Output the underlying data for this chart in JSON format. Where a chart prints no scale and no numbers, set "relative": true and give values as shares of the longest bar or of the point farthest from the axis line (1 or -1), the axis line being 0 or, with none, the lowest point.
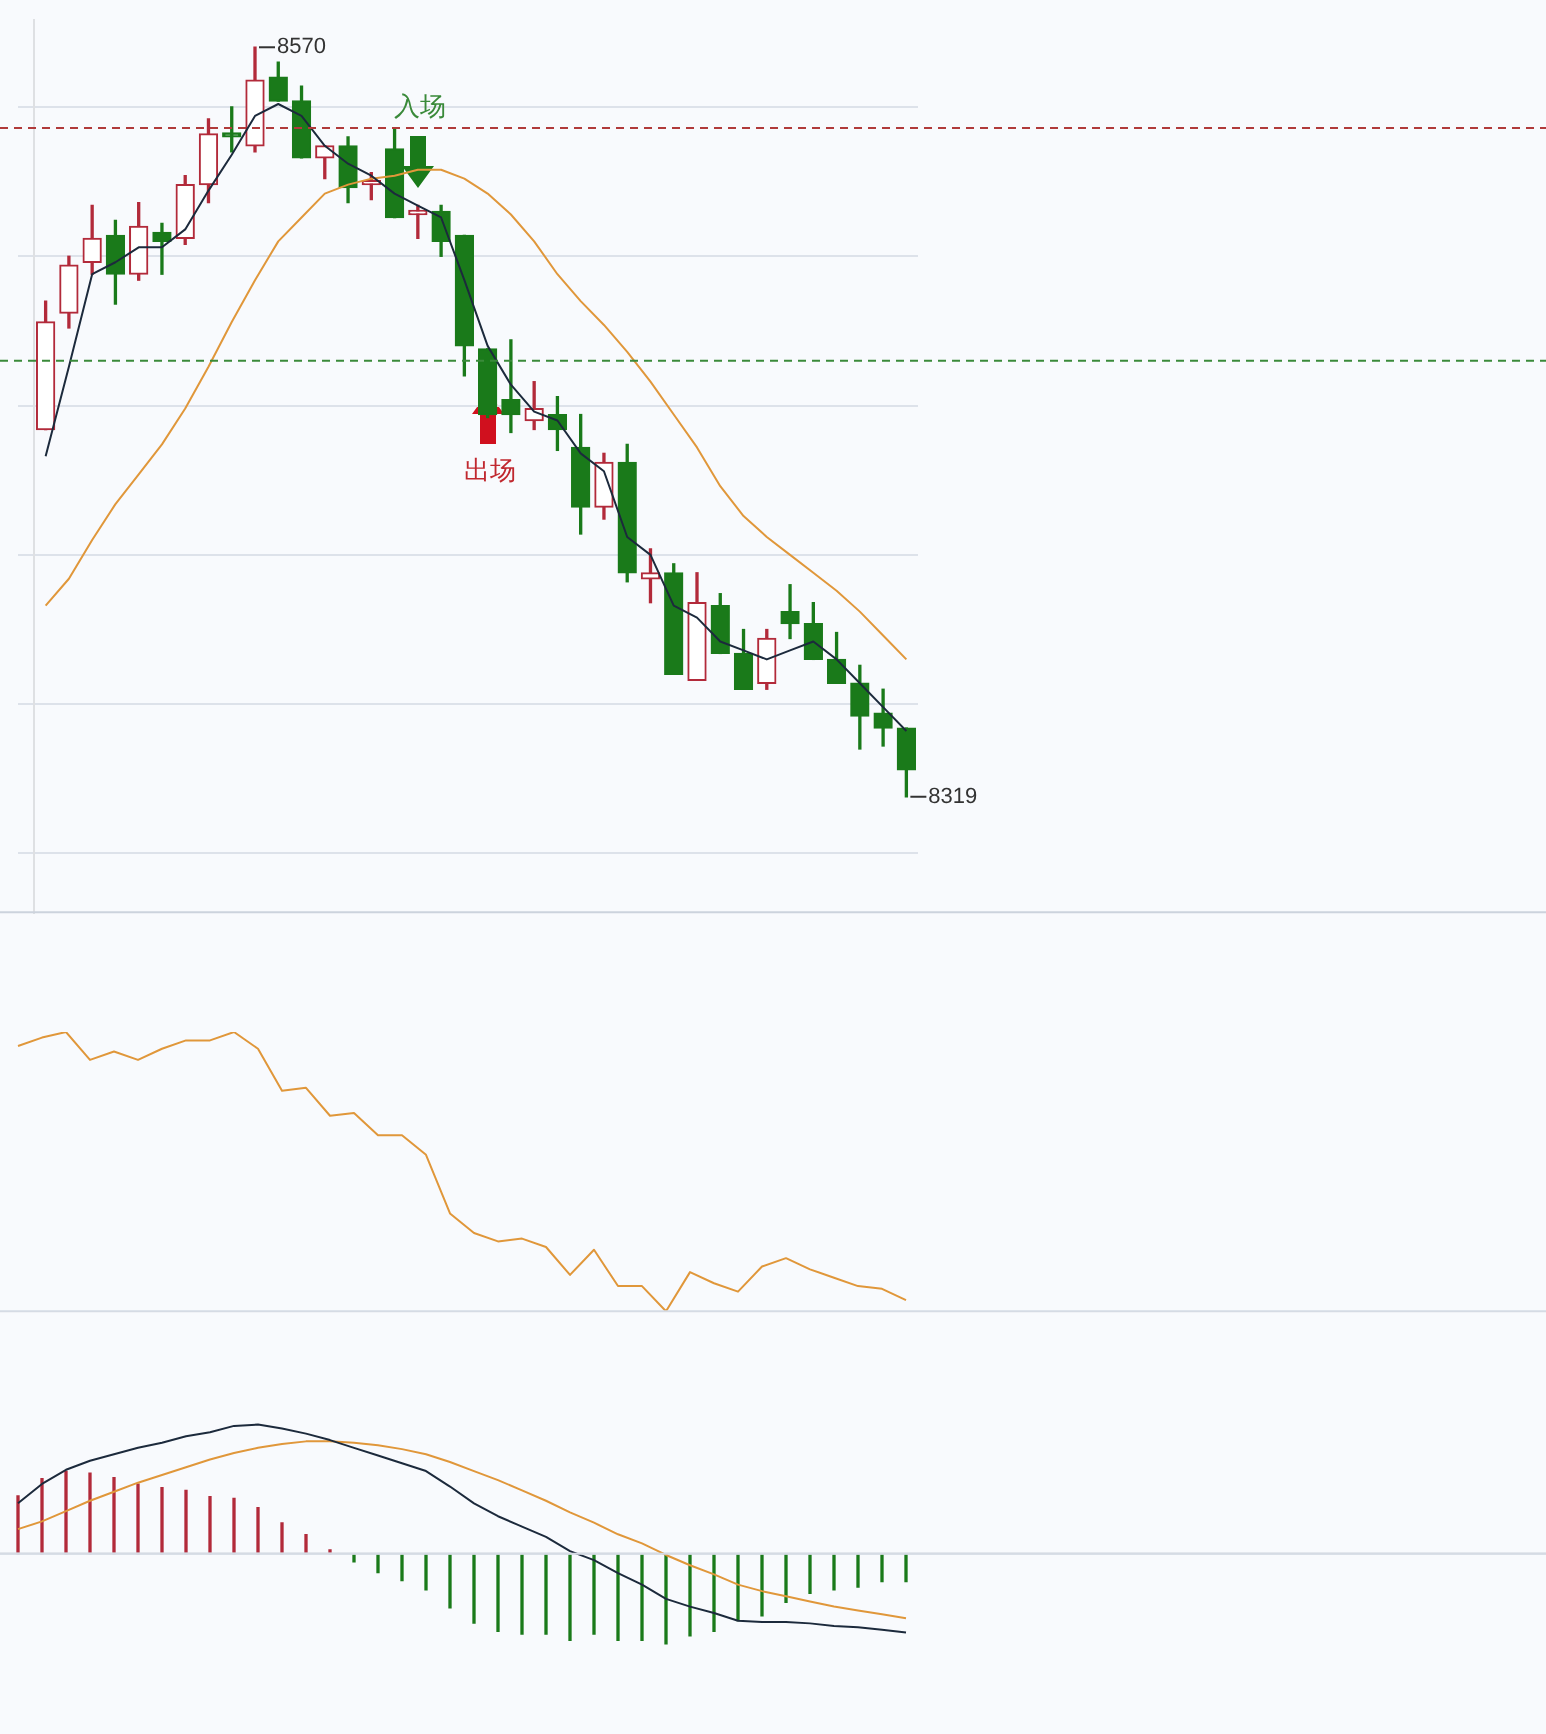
{
  "chart_data": [
    {
      "type": "candlestick",
      "categories": [
        null,
        null,
        null,
        null,
        null,
        null,
        null,
        null,
        null,
        null,
        null,
        null,
        null,
        null,
        null,
        null,
        null,
        null,
        null,
        null,
        null,
        null,
        null,
        null,
        null,
        null,
        null,
        null,
        null,
        null,
        null,
        null,
        null,
        null,
        null,
        null,
        null,
        null
      ],
      "ohlc": [
        [
          8442,
          8485,
          8442,
          8478
        ],
        [
          8481,
          8500,
          8476,
          8497
        ],
        [
          8498,
          8517,
          8494,
          8506
        ],
        [
          8507,
          8512,
          8484,
          8494
        ],
        [
          8494,
          8518,
          8492,
          8510
        ],
        [
          8508,
          8511,
          8494,
          8505
        ],
        [
          8506,
          8527,
          8504,
          8524
        ],
        [
          8524,
          8546,
          8518,
          8541
        ],
        [
          8541,
          8550,
          8535,
          8540
        ],
        [
          8537,
          8570,
          8535,
          8559
        ],
        [
          8560,
          8565,
          8552,
          8552
        ],
        [
          8552,
          8557,
          8533,
          8533
        ],
        [
          8533,
          8537,
          8526,
          8537
        ],
        [
          8537,
          8540,
          8518,
          8523
        ],
        [
          8524,
          8528,
          8519,
          8525
        ],
        [
          8536,
          8543,
          8513,
          8513
        ],
        [
          8514,
          8517,
          8506,
          8515
        ],
        [
          8515,
          8517,
          8500,
          8505
        ],
        [
          8507,
          8507,
          8460,
          8470
        ],
        [
          8469,
          8469,
          8446,
          8447
        ],
        [
          8452,
          8472,
          8441,
          8447
        ],
        [
          8445,
          8458,
          8442,
          8449
        ],
        [
          8447,
          8453,
          8435,
          8442
        ],
        [
          8436,
          8447,
          8407,
          8416
        ],
        [
          8416,
          8434,
          8412,
          8431
        ],
        [
          8431,
          8437,
          8391,
          8394
        ],
        [
          8392,
          8402,
          8384,
          8394
        ],
        [
          8394,
          8397,
          8360,
          8360
        ],
        [
          8358,
          8394,
          8358,
          8384
        ],
        [
          8383,
          8387,
          8367,
          8367
        ],
        [
          8367,
          8375,
          8355,
          8355
        ],
        [
          8357,
          8375,
          8355,
          8372
        ],
        [
          8381,
          8390,
          8372,
          8377
        ],
        [
          8377,
          8384,
          8365,
          8365
        ],
        [
          8365,
          8374,
          8357,
          8357
        ],
        [
          8357,
          8363,
          8335,
          8346
        ],
        [
          8347,
          8355,
          8336,
          8342
        ],
        [
          8342,
          8342,
          8319,
          8328
        ]
      ],
      "colors": [
        "#b22a3a",
        "#b22a3a",
        "#b22a3a",
        "#1a7a1a",
        "#b22a3a",
        "#1a7a1a",
        "#b22a3a",
        "#b22a3a",
        "#1a7a1a",
        "#b22a3a",
        "#1a7a1a",
        "#1a7a1a",
        "#b22a3a",
        "#1a7a1a",
        "#b22a3a",
        "#1a7a1a",
        "#b22a3a",
        "#1a7a1a",
        "#1a7a1a",
        "#1a7a1a",
        "#1a7a1a",
        "#b22a3a",
        "#1a7a1a",
        "#1a7a1a",
        "#b22a3a",
        "#1a7a1a",
        "#b22a3a",
        "#1a7a1a",
        "#b22a3a",
        "#1a7a1a",
        "#1a7a1a",
        "#b22a3a",
        "#1a7a1a",
        "#1a7a1a",
        "#1a7a1a",
        "#1a7a1a",
        "#1a7a1a",
        "#1a7a1a"
      ],
      "series": [
        {
          "type": "line",
          "color": "#1c2a3c",
          "values": [
            8433,
            8463,
            8494,
            8498,
            8503,
            8503,
            8509,
            8522,
            8534,
            8547,
            8551,
            8547,
            8537,
            8531,
            8527,
            8521,
            8517,
            8513,
            8492,
            8470,
            8457,
            8448,
            8445,
            8434,
            8428,
            8406,
            8400,
            8383,
            8379,
            8371,
            8368,
            8365,
            8368,
            8371,
            8365,
            8357,
            8349,
            8341
          ]
        },
        {
          "type": "line",
          "color": "#e0973a",
          "values": [
            8383,
            8392,
            8405,
            8417,
            8427,
            8437,
            8449,
            8463,
            8478,
            8492,
            8505,
            8513,
            8521,
            8524,
            8526,
            8527,
            8529,
            8529,
            8526,
            8521,
            8514,
            8505,
            8494,
            8485,
            8477,
            8468,
            8458,
            8447,
            8436,
            8423,
            8413,
            8406,
            8400,
            8394,
            8388,
            8381,
            8373,
            8365
          ]
        }
      ],
      "ylim": [
        8280,
        8579
      ],
      "yticks": [
        {
          "value": 8300,
          "label": null
        },
        {
          "value": 8350,
          "label": null
        },
        {
          "value": 8400,
          "label": null
        },
        {
          "value": 8450,
          "label": null
        },
        {
          "value": 8500,
          "label": null
        },
        {
          "value": 8550,
          "label": null
        }
      ],
      "grid": "y",
      "marker": "none",
      "legend": false,
      "ref_lines": [
        {
          "axis": "y",
          "value": 8543,
          "color": "#b03a3a",
          "line_style": "dashed"
        },
        {
          "axis": "y",
          "value": 8465,
          "color": "#3a8a3a",
          "line_style": "dashed"
        }
      ],
      "annotations": [
        "8570",
        "8319",
        "入场",
        "出场"
      ]
    },
    {
      "type": "line",
      "categories": [
        null,
        null,
        null,
        null,
        null,
        null,
        null,
        null,
        null,
        null,
        null,
        null,
        null,
        null,
        null,
        null,
        null,
        null,
        null,
        null,
        null,
        null,
        null,
        null,
        null,
        null,
        null,
        null,
        null,
        null,
        null,
        null,
        null,
        null,
        null,
        null,
        null,
        null
      ],
      "relative": true,
      "marker": "none",
      "legend": false,
      "series": [
        {
          "color": "#e0973a",
          "values": [
            0.95,
            0.98,
            1,
            0.9,
            0.93,
            0.9,
            0.94,
            0.97,
            0.97,
            1,
            0.94,
            0.79,
            0.8,
            0.7,
            0.71,
            0.63,
            0.63,
            0.56,
            0.35,
            0.28,
            0.25,
            0.26,
            0.23,
            0.13,
            0.22,
            0.09,
            0.09,
            0,
            0.14,
            0.1,
            0.07,
            0.16,
            0.19,
            0.15,
            0.12,
            0.09,
            0.08,
            0.04
          ]
        }
      ]
    },
    {
      "type": "bar",
      "categories": [
        null,
        null,
        null,
        null,
        null,
        null,
        null,
        null,
        null,
        null,
        null,
        null,
        null,
        null,
        null,
        null,
        null,
        null,
        null,
        null,
        null,
        null,
        null,
        null,
        null,
        null,
        null,
        null,
        null,
        null,
        null,
        null,
        null,
        null,
        null,
        null,
        null,
        null
      ],
      "relative": true,
      "legend": false,
      "series": [
        {
          "colors": [
            "#b22a3a",
            "#b22a3a",
            "#b22a3a",
            "#b22a3a",
            "#b22a3a",
            "#b22a3a",
            "#b22a3a",
            "#b22a3a",
            "#b22a3a",
            "#b22a3a",
            "#b22a3a",
            "#b22a3a",
            "#b22a3a",
            "#b22a3a",
            "#1a7a1a",
            "#1a7a1a",
            "#1a7a1a",
            "#1a7a1a",
            "#1a7a1a",
            "#1a7a1a",
            "#1a7a1a",
            "#1a7a1a",
            "#1a7a1a",
            "#1a7a1a",
            "#1a7a1a",
            "#1a7a1a",
            "#1a7a1a",
            "#1a7a1a",
            "#1a7a1a",
            "#1a7a1a",
            "#1a7a1a",
            "#1a7a1a",
            "#1a7a1a",
            "#1a7a1a",
            "#1a7a1a",
            "#1a7a1a",
            "#1a7a1a",
            "#1a7a1a"
          ],
          "values": [
            0.64,
            0.83,
            0.91,
            0.89,
            0.84,
            0.77,
            0.73,
            0.7,
            0.63,
            0.61,
            0.51,
            0.34,
            0.21,
            0.04,
            -0.09,
            -0.21,
            -0.3,
            -0.4,
            -0.6,
            -0.77,
            -0.86,
            -0.89,
            -0.89,
            -0.96,
            -0.89,
            -0.96,
            -0.96,
            -1,
            -0.91,
            -0.86,
            -0.74,
            -0.69,
            -0.54,
            -0.44,
            -0.4,
            -0.37,
            -0.31,
            -0.31
          ]
        }
      ]
    },
    {
      "type": "line",
      "categories": [
        null,
        null,
        null,
        null,
        null,
        null,
        null,
        null,
        null,
        null,
        null,
        null,
        null,
        null,
        null,
        null,
        null,
        null,
        null,
        null,
        null,
        null,
        null,
        null,
        null,
        null,
        null,
        null,
        null,
        null,
        null,
        null,
        null,
        null,
        null,
        null,
        null,
        null
      ],
      "relative": true,
      "marker": "none",
      "legend": false,
      "series": [
        {
          "color": "#1c2a3c",
          "values": [
            0.39,
            0.54,
            0.65,
            0.72,
            0.77,
            0.82,
            0.86,
            0.91,
            0.94,
            0.99,
            1,
            0.97,
            0.93,
            0.88,
            0.82,
            0.76,
            0.7,
            0.64,
            0.52,
            0.39,
            0.29,
            0.21,
            0.13,
            0.02,
            -0.05,
            -0.15,
            -0.24,
            -0.35,
            -0.41,
            -0.46,
            -0.52,
            -0.53,
            -0.53,
            -0.54,
            -0.56,
            -0.57,
            -0.59,
            -0.61
          ]
        },
        {
          "color": "#e0973a",
          "values": [
            0.19,
            0.25,
            0.33,
            0.41,
            0.48,
            0.55,
            0.61,
            0.67,
            0.73,
            0.78,
            0.82,
            0.85,
            0.87,
            0.87,
            0.86,
            0.84,
            0.81,
            0.77,
            0.71,
            0.64,
            0.57,
            0.49,
            0.41,
            0.32,
            0.24,
            0.15,
            0.08,
            -0.01,
            -0.09,
            -0.16,
            -0.24,
            -0.29,
            -0.33,
            -0.37,
            -0.41,
            -0.44,
            -0.47,
            -0.5
          ]
        }
      ]
    }
  ]
}
